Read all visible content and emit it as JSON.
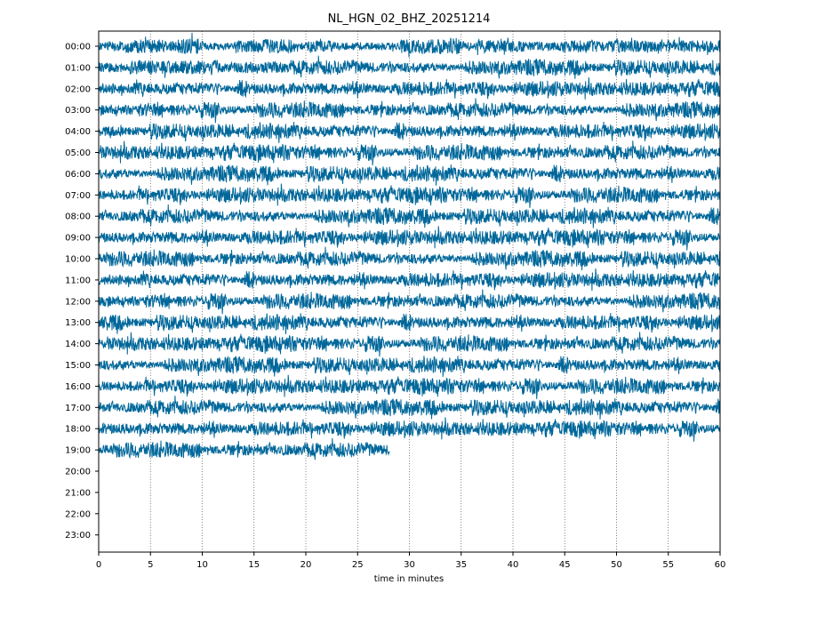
{
  "chart_data": {
    "type": "line",
    "title": "NL_HGN_02_BHZ_20251214",
    "xlabel": "time in minutes",
    "ylabel": "",
    "xlim": [
      0,
      60
    ],
    "x_ticks": [
      "0",
      "5",
      "10",
      "15",
      "20",
      "25",
      "30",
      "35",
      "40",
      "45",
      "50",
      "55",
      "60"
    ],
    "x_tick_values": [
      0,
      5,
      10,
      15,
      20,
      25,
      30,
      35,
      40,
      45,
      50,
      55,
      60
    ],
    "row_labels": [
      "00:00",
      "01:00",
      "02:00",
      "03:00",
      "04:00",
      "05:00",
      "06:00",
      "07:00",
      "08:00",
      "09:00",
      "10:00",
      "11:00",
      "12:00",
      "13:00",
      "14:00",
      "15:00",
      "16:00",
      "17:00",
      "18:00",
      "19:00",
      "20:00",
      "21:00",
      "22:00",
      "23:00"
    ],
    "rows_with_data": 20,
    "last_row_end_minute": 28.1,
    "grid": "vertical dotted at every 5 minutes",
    "trace_color": "#00679a"
  }
}
